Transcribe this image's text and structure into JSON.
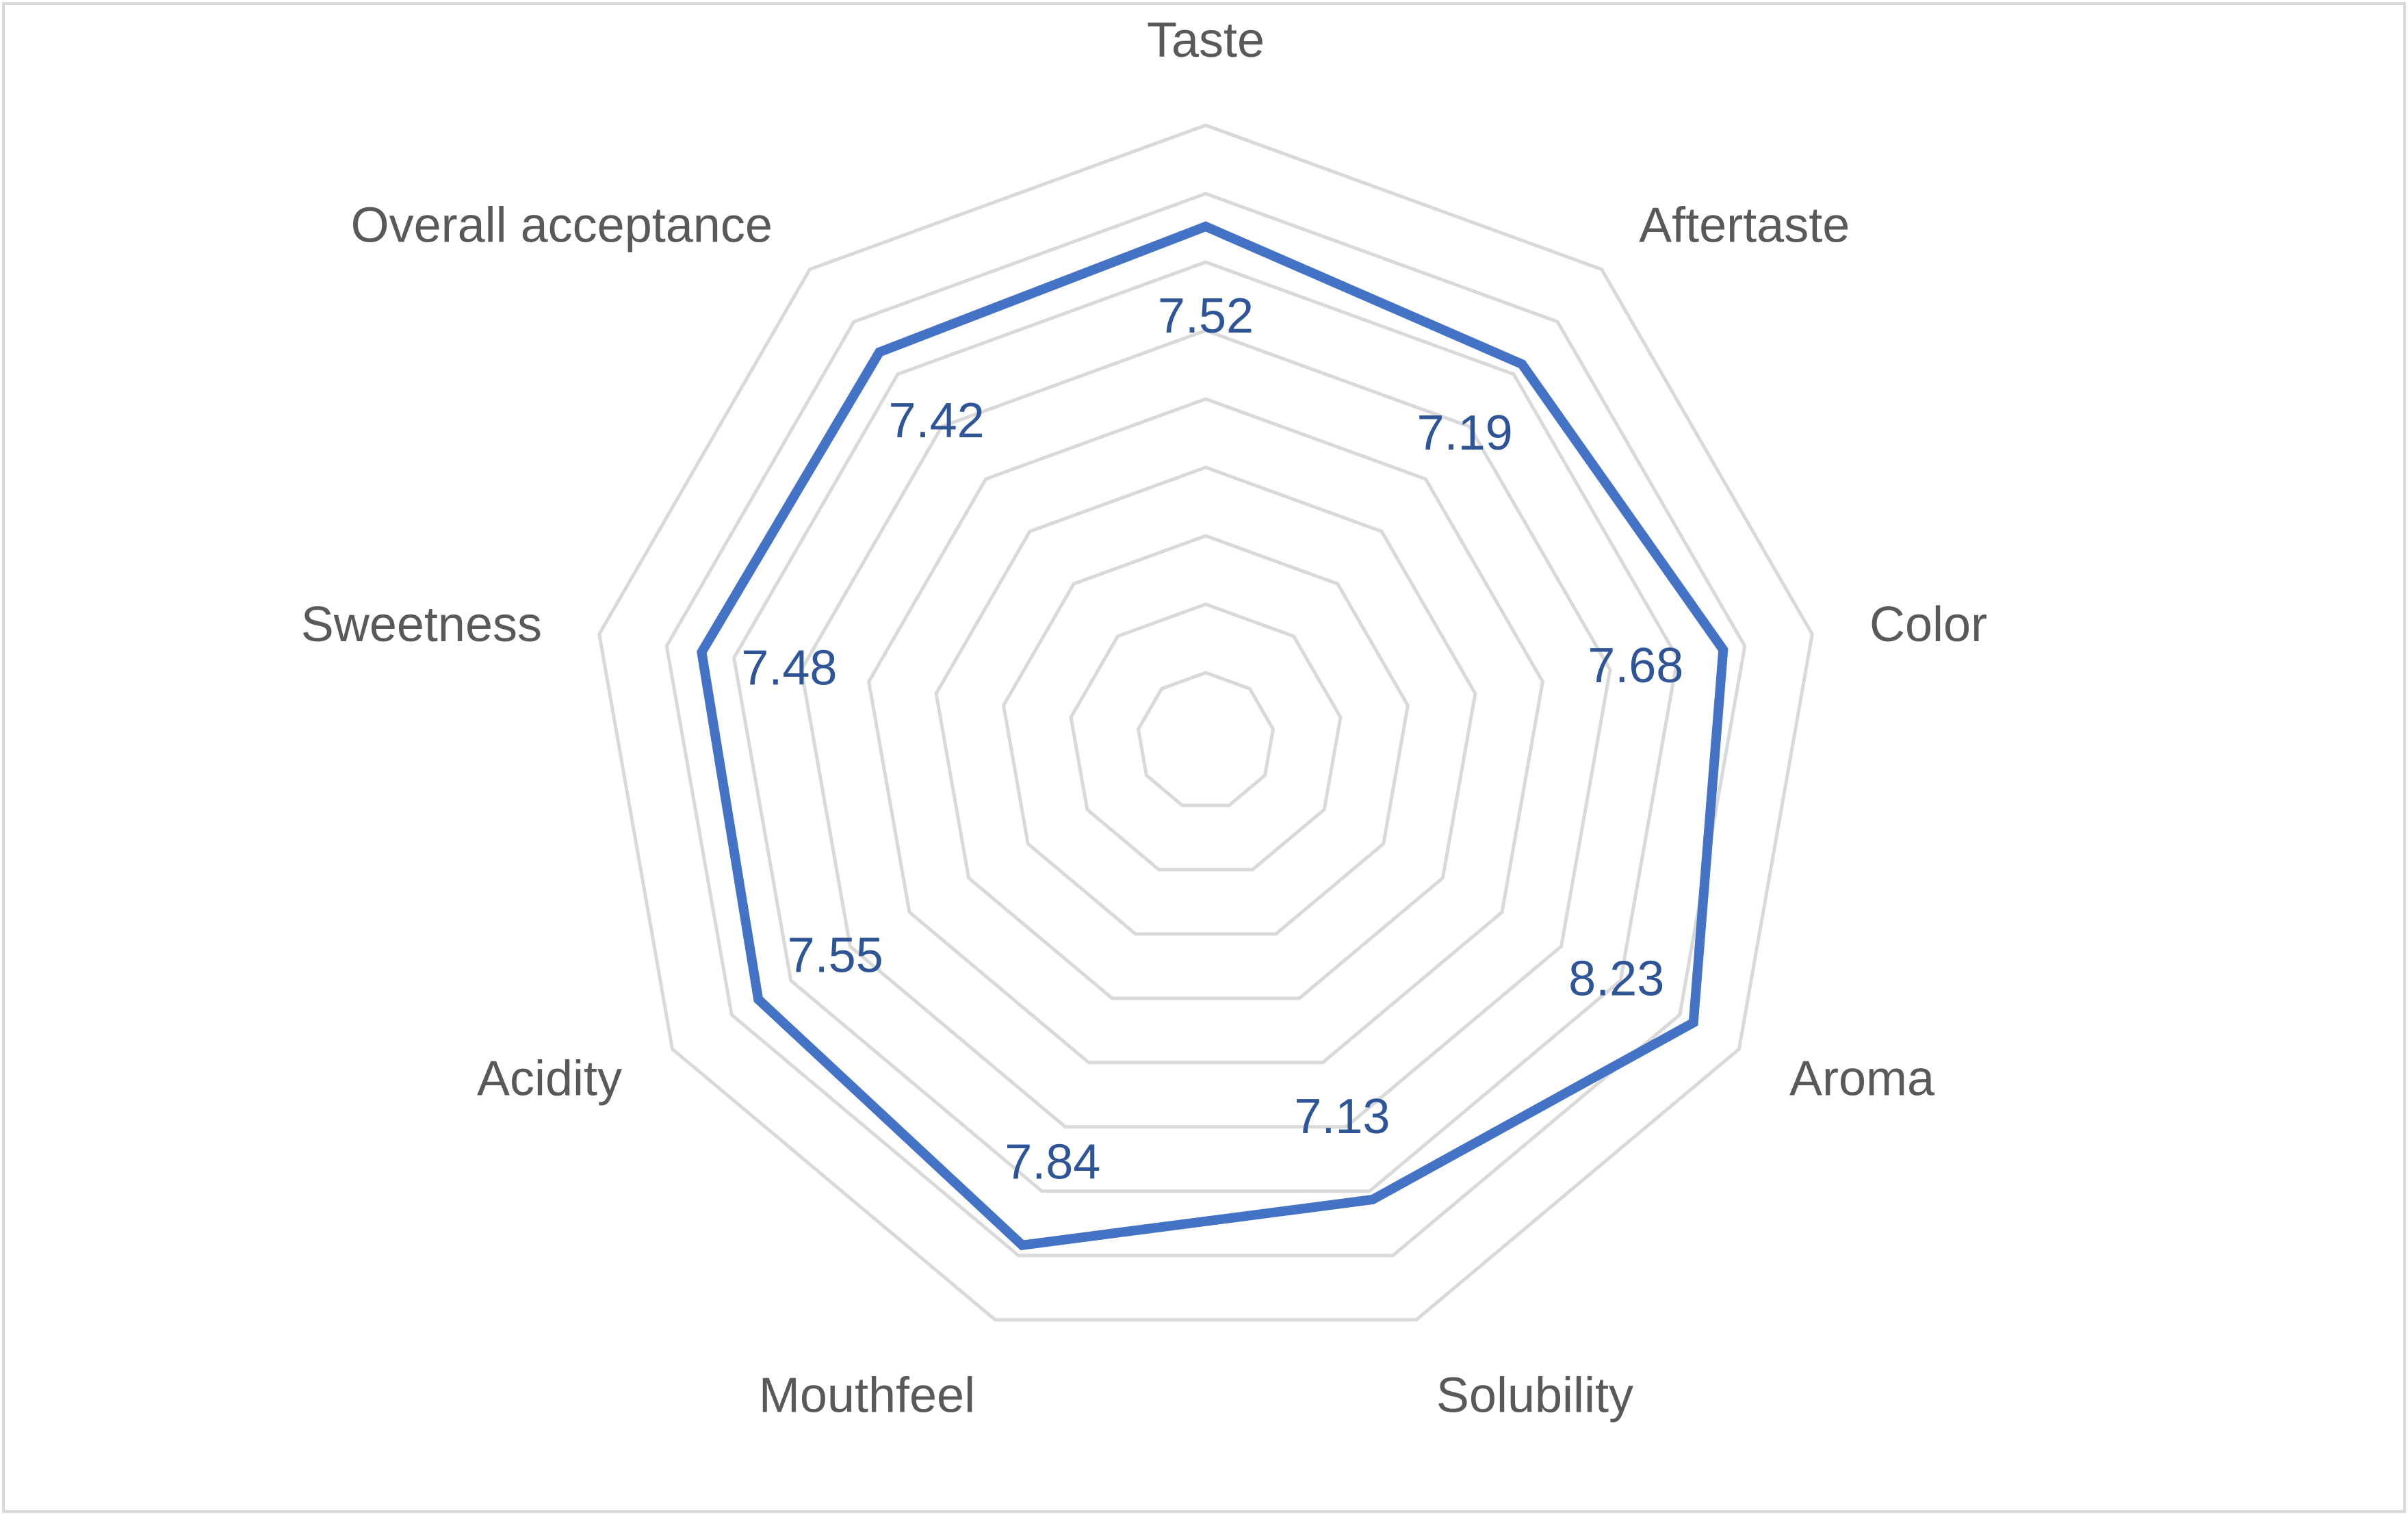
{
  "chart_data": {
    "type": "radar",
    "categories": [
      "Taste",
      "Aftertaste",
      "Color",
      "Aroma",
      "Solubility",
      "Mouthfeel",
      "Acidity",
      "Sweetness",
      "Overall acceptance"
    ],
    "series": [
      {
        "values": [
          7.52,
          7.19,
          7.68,
          8.23,
          7.13,
          7.84,
          7.55,
          7.48,
          7.42
        ],
        "data_labels": [
          "7.52",
          "7.19",
          "7.68",
          "8.23",
          "7.13",
          "7.84",
          "7.55",
          "7.48",
          "7.42"
        ],
        "color": "#4472c4"
      }
    ],
    "rmin": 0,
    "rmax": 9,
    "grid": true,
    "grid_rings": 9,
    "grid_color": "#d9d9d9",
    "label_color": "#595959",
    "data_label_color": "#2f5597",
    "legend": "none"
  }
}
